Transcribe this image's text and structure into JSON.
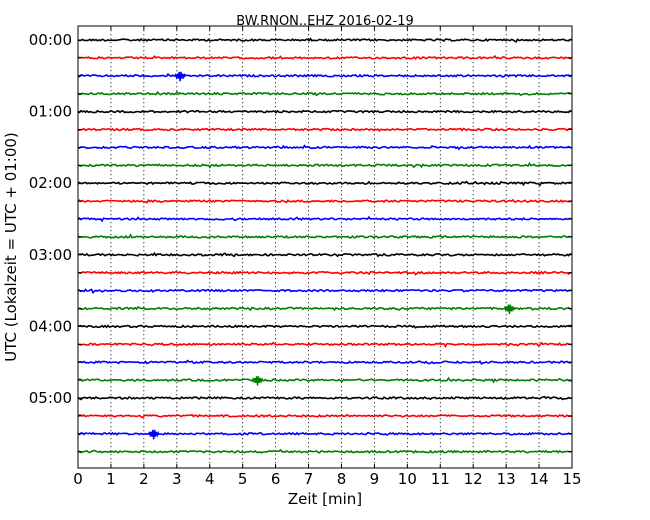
{
  "chart_data": {
    "type": "line",
    "title": "BW.RNON..EHZ 2016-02-19",
    "xlabel": "Zeit  [min]",
    "ylabel": "UTC (Lokalzeit = UTC + 01:00)",
    "xlim": [
      0,
      15
    ],
    "x_ticks": [
      "0",
      "1",
      "2",
      "3",
      "4",
      "5",
      "6",
      "7",
      "8",
      "9",
      "10",
      "11",
      "12",
      "13",
      "14",
      "15"
    ],
    "y_tick_labels": [
      "00:00",
      "01:00",
      "02:00",
      "03:00",
      "04:00",
      "05:00"
    ],
    "grid": "vertical dotted",
    "trace_interval_minutes": 15,
    "trace_colors": [
      "#000000",
      "#ff0000",
      "#0000ff",
      "#008000"
    ],
    "traces": [
      {
        "start": "00:00",
        "color": "#000000"
      },
      {
        "start": "00:15",
        "color": "#ff0000"
      },
      {
        "start": "00:30",
        "color": "#0000ff",
        "events": [
          3.1
        ]
      },
      {
        "start": "00:45",
        "color": "#008000"
      },
      {
        "start": "01:00",
        "color": "#000000"
      },
      {
        "start": "01:15",
        "color": "#ff0000"
      },
      {
        "start": "01:30",
        "color": "#0000ff"
      },
      {
        "start": "01:45",
        "color": "#008000"
      },
      {
        "start": "02:00",
        "color": "#000000"
      },
      {
        "start": "02:15",
        "color": "#ff0000"
      },
      {
        "start": "02:30",
        "color": "#0000ff"
      },
      {
        "start": "02:45",
        "color": "#008000"
      },
      {
        "start": "03:00",
        "color": "#000000"
      },
      {
        "start": "03:15",
        "color": "#ff0000"
      },
      {
        "start": "03:30",
        "color": "#0000ff"
      },
      {
        "start": "03:45",
        "color": "#008000",
        "events": [
          13.1
        ]
      },
      {
        "start": "04:00",
        "color": "#000000"
      },
      {
        "start": "04:15",
        "color": "#ff0000"
      },
      {
        "start": "04:30",
        "color": "#0000ff"
      },
      {
        "start": "04:45",
        "color": "#008000",
        "events": [
          5.45
        ]
      },
      {
        "start": "05:00",
        "color": "#000000"
      },
      {
        "start": "05:15",
        "color": "#ff0000"
      },
      {
        "start": "05:30",
        "color": "#0000ff",
        "events": [
          2.3
        ]
      },
      {
        "start": "05:45",
        "color": "#008000"
      }
    ]
  }
}
